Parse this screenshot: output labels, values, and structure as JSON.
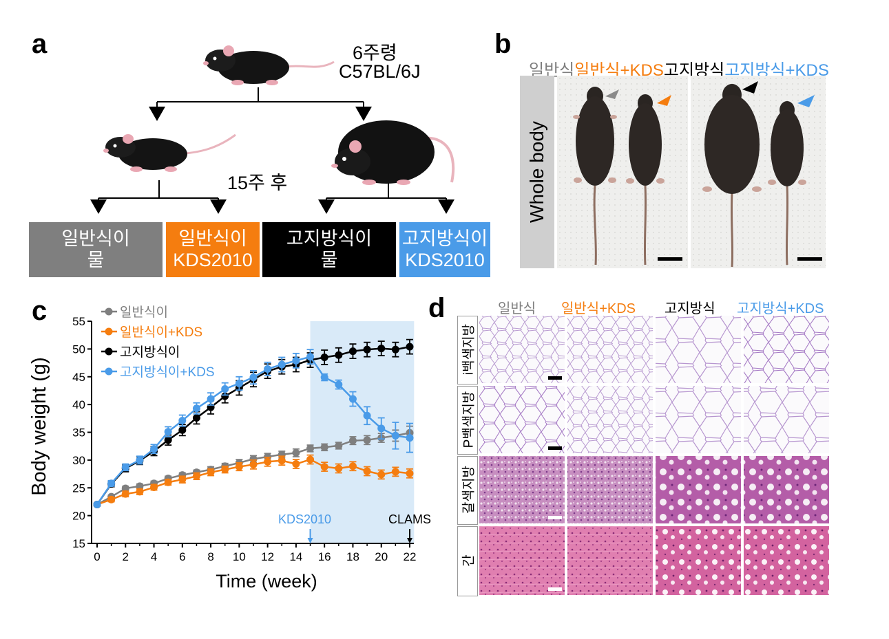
{
  "colors": {
    "gray": "#7f7f7f",
    "orange": "#f57d0f",
    "black": "#000000",
    "blue": "#4a9be8",
    "shade": "#d9eaf8"
  },
  "panel_a": {
    "label": "a",
    "age": "6주령",
    "strain": "C57BL/6J",
    "after": "15주 후",
    "groups": [
      {
        "line1": "일반식이",
        "line2": "물"
      },
      {
        "line1": "일반식이",
        "line2": "KDS2010"
      },
      {
        "line1": "고지방식이",
        "line2": "물"
      },
      {
        "line1": "고지방식이",
        "line2": "KDS2010"
      }
    ]
  },
  "panel_b": {
    "label": "b",
    "headers": [
      "일반식",
      "일반식+KDS",
      "고지방식",
      "고지방식+KDS"
    ],
    "side_label": "Whole body"
  },
  "panel_c": {
    "label": "c"
  },
  "panel_d": {
    "label": "d",
    "headers": [
      "일반식",
      "일반식+KDS",
      "고지방식",
      "고지방식+KDS"
    ],
    "rows": [
      "i백색지방",
      "P백색지방",
      "갈색지방",
      "간"
    ]
  },
  "chart_data": {
    "type": "line",
    "xlabel": "Time (week)",
    "ylabel": "Body weight (g)",
    "xlim": [
      0,
      22
    ],
    "ylim": [
      15,
      55
    ],
    "xticks": [
      0,
      2,
      4,
      6,
      8,
      10,
      12,
      14,
      16,
      18,
      20,
      22
    ],
    "yticks": [
      15,
      20,
      25,
      30,
      35,
      40,
      45,
      50,
      55
    ],
    "shaded_region": [
      15,
      22.5
    ],
    "annotations": [
      {
        "text": "KDS2010",
        "x": 15,
        "color": "#4a9be8"
      },
      {
        "text": "CLAMS",
        "x": 22,
        "color": "#000000"
      }
    ],
    "series": [
      {
        "name": "일반식이",
        "color": "#7f7f7f",
        "x": [
          0,
          1,
          2,
          3,
          4,
          5,
          6,
          7,
          8,
          9,
          10,
          11,
          12,
          13,
          14,
          15,
          16,
          17,
          18,
          19,
          20,
          21,
          22
        ],
        "values": [
          22,
          23.4,
          24.9,
          25.3,
          25.8,
          26.7,
          27.3,
          27.8,
          28.3,
          28.9,
          29.5,
          30.2,
          30.6,
          31,
          31.3,
          32.1,
          32.3,
          32.6,
          33.5,
          33.6,
          34,
          34.4,
          34.9
        ],
        "err": [
          0.3,
          0.3,
          0.4,
          0.4,
          0.4,
          0.4,
          0.4,
          0.4,
          0.5,
          0.5,
          0.6,
          0.6,
          0.6,
          0.6,
          0.7,
          0.6,
          0.6,
          0.6,
          0.7,
          0.8,
          0.8,
          1.0,
          1.2
        ]
      },
      {
        "name": "일반식이+KDS",
        "color": "#f57d0f",
        "x": [
          0,
          1,
          2,
          3,
          4,
          5,
          6,
          7,
          8,
          9,
          10,
          11,
          12,
          13,
          14,
          15,
          16,
          17,
          18,
          19,
          20,
          21,
          22
        ],
        "values": [
          22,
          22.9,
          23.9,
          24.3,
          25.1,
          26,
          26.5,
          27.1,
          27.8,
          28.3,
          28.8,
          29.2,
          29.7,
          29.9,
          29.3,
          30.1,
          28.8,
          28.5,
          28.9,
          28,
          27.4,
          27.9,
          27.6
        ],
        "err": [
          0.3,
          0.4,
          0.5,
          0.5,
          0.5,
          0.5,
          0.6,
          0.6,
          0.6,
          0.6,
          0.7,
          0.8,
          0.8,
          0.8,
          0.8,
          0.8,
          0.8,
          0.8,
          0.8,
          0.8,
          0.8,
          0.8,
          0.8
        ]
      },
      {
        "name": "고지방식이",
        "color": "#000000",
        "x": [
          0,
          1,
          2,
          3,
          4,
          5,
          6,
          7,
          8,
          9,
          10,
          11,
          12,
          13,
          14,
          15,
          16,
          17,
          18,
          19,
          20,
          21,
          22
        ],
        "values": [
          22,
          25.7,
          28.5,
          29.9,
          31.6,
          33.6,
          35.4,
          37.6,
          39.5,
          41.5,
          43,
          44.5,
          46,
          46.8,
          47.2,
          48,
          48.5,
          48.9,
          49.6,
          49.9,
          50.1,
          49.9,
          50.4
        ],
        "err": [
          0.3,
          0.5,
          0.6,
          0.7,
          0.8,
          0.9,
          1.0,
          1.1,
          1.2,
          1.2,
          1.3,
          1.3,
          1.3,
          1.3,
          1.3,
          1.3,
          1.3,
          1.3,
          1.3,
          1.3,
          1.3,
          1.3,
          1.3
        ]
      },
      {
        "name": "고지방식이+KDS",
        "color": "#4a9be8",
        "x": [
          0,
          1,
          2,
          3,
          4,
          5,
          6,
          7,
          8,
          9,
          10,
          11,
          12,
          13,
          14,
          15,
          16,
          17,
          18,
          19,
          20,
          21,
          22
        ],
        "values": [
          22,
          25.8,
          28.7,
          30,
          32,
          35.1,
          37.1,
          39.3,
          41,
          42.8,
          43.8,
          44.9,
          46.4,
          47.2,
          47.9,
          48.6,
          44.9,
          43.6,
          41,
          38,
          35.7,
          34.4,
          34
        ],
        "err": [
          0.3,
          0.5,
          0.6,
          0.7,
          0.8,
          0.9,
          1.0,
          1.0,
          1.1,
          1.1,
          1.2,
          1.2,
          1.2,
          1.3,
          1.3,
          1.3,
          0.6,
          0.8,
          1.3,
          1.6,
          1.9,
          2.4,
          2.6
        ]
      }
    ]
  }
}
